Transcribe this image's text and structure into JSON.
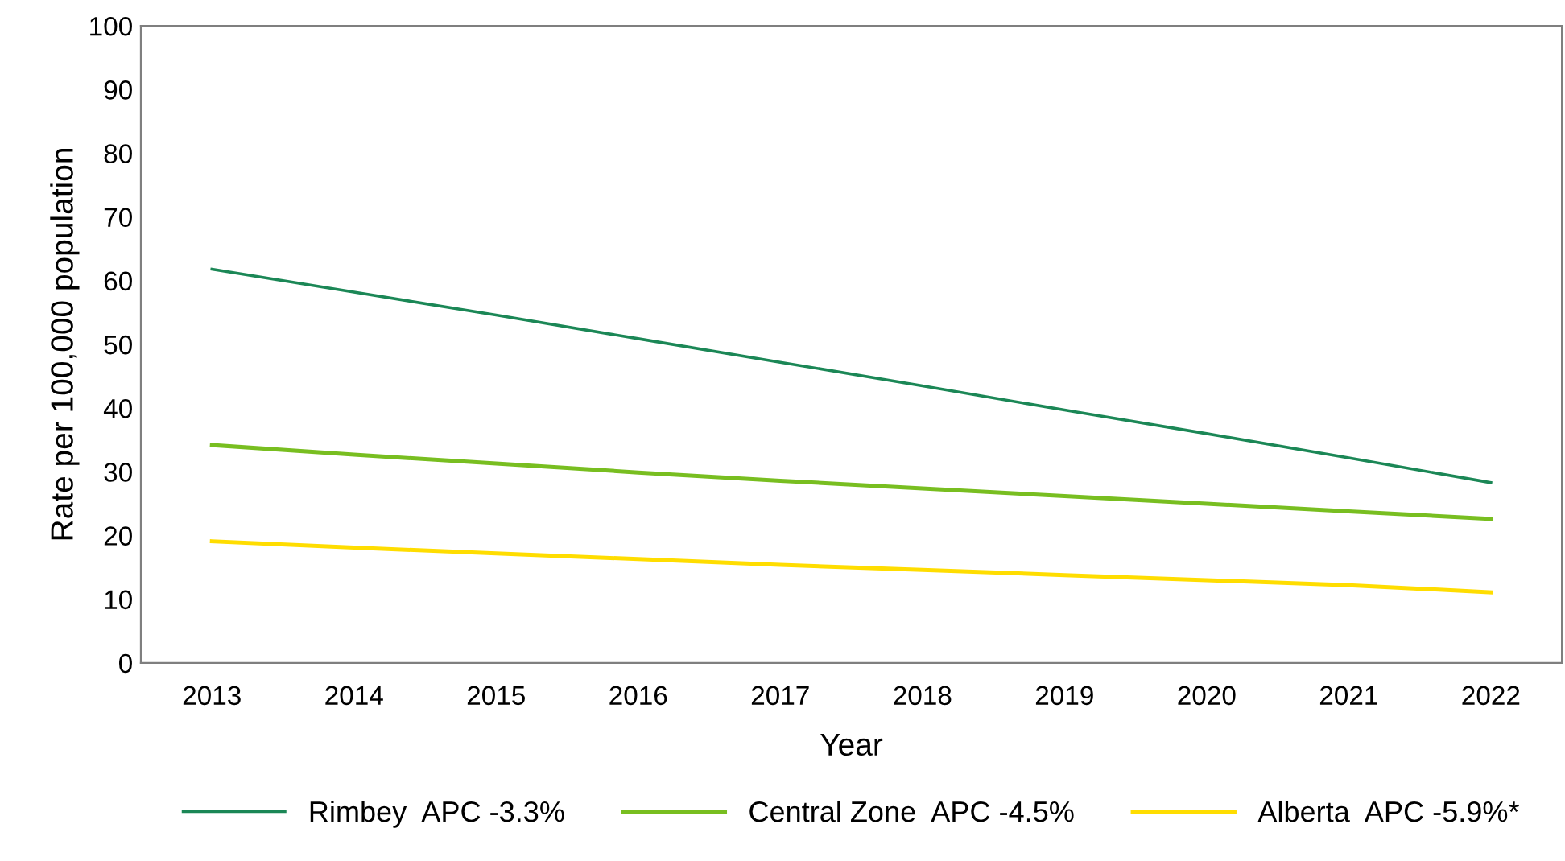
{
  "chart_data": {
    "type": "line",
    "xlabel": "Year",
    "ylabel": "Rate per 100,000 population",
    "categories": [
      "2013",
      "2014",
      "2015",
      "2016",
      "2017",
      "2018",
      "2019",
      "2020",
      "2021",
      "2022"
    ],
    "series": [
      {
        "name": "Rimbey  APC -3.3%",
        "color": "#1b8756",
        "values": [
          61.8,
          58.2,
          54.6,
          50.9,
          47.2,
          43.5,
          39.7,
          36.0,
          32.2,
          28.3
        ]
      },
      {
        "name": "Central Zone  APC -4.5%",
        "color": "#78be20",
        "values": [
          34.2,
          32.7,
          31.3,
          29.9,
          28.6,
          27.4,
          26.2,
          25.0,
          23.8,
          22.6
        ]
      },
      {
        "name": "Alberta  APC -5.9%*",
        "color": "#ffdd00",
        "values": [
          19.1,
          18.1,
          17.2,
          16.3,
          15.4,
          14.6,
          13.8,
          13.0,
          12.2,
          11.1
        ]
      }
    ],
    "ylim": [
      0,
      100
    ],
    "yticks": [
      0,
      10,
      20,
      30,
      40,
      50,
      60,
      70,
      80,
      90,
      100
    ],
    "grid": false,
    "legend": "bottom",
    "marker": "none",
    "line_style": "solid"
  }
}
